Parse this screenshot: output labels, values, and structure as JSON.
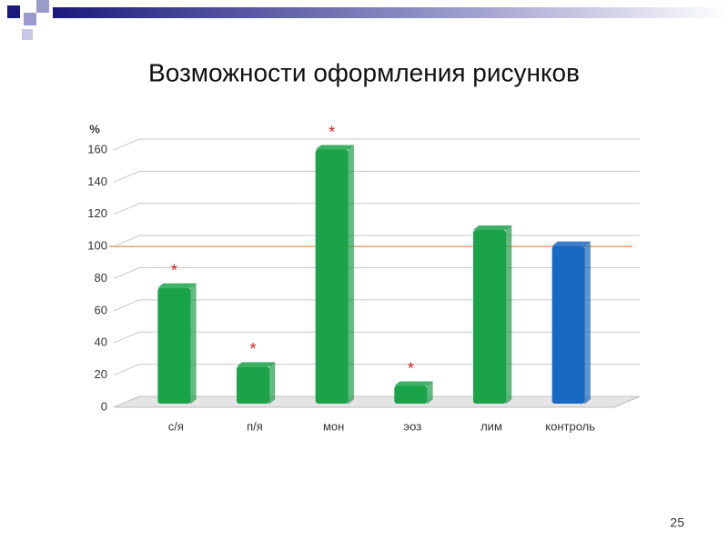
{
  "slide": {
    "page_number": "25"
  },
  "chart_data": {
    "type": "bar3d",
    "title": "Возможности оформления рисунков",
    "y_label": "%",
    "categories": [
      "с/я",
      "п/я",
      "мон",
      "эоз",
      "лим",
      "контроль"
    ],
    "values": [
      72,
      23,
      158,
      11,
      108,
      98
    ],
    "colors": [
      "#1ba34a",
      "#1ba34a",
      "#1ba34a",
      "#1ba34a",
      "#1ba34a",
      "#1769c2"
    ],
    "significance": [
      "*",
      "*",
      "*",
      "*",
      null,
      null
    ],
    "significance_color": "#d81e1e",
    "reference_line": 100,
    "reference_color": "#e6a26a",
    "ylim": [
      0,
      160
    ],
    "yticks": [
      0,
      20,
      40,
      60,
      80,
      100,
      120,
      140,
      160
    ],
    "grid": true
  }
}
